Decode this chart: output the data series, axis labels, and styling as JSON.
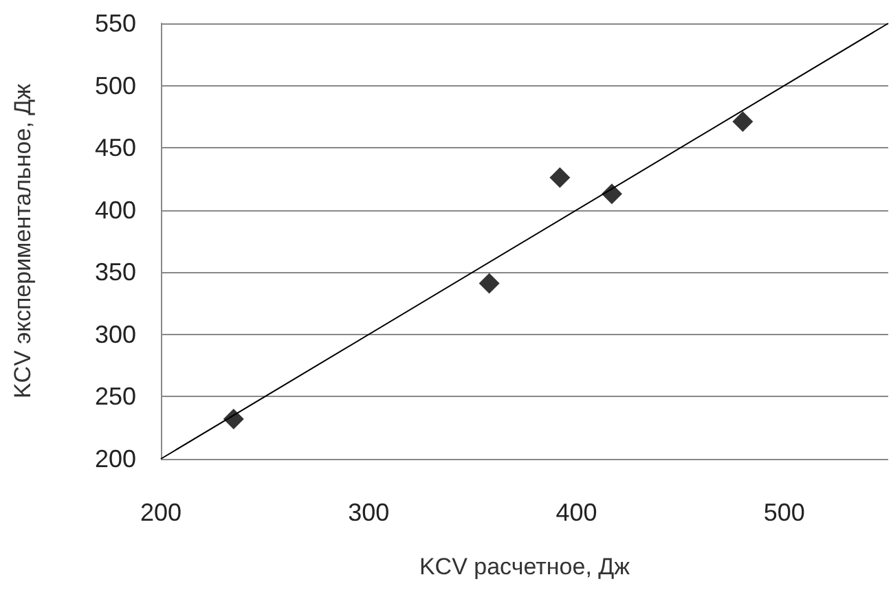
{
  "chart_data": {
    "type": "scatter",
    "xlabel": "KCV расчетное, Дж",
    "ylabel": "KCV экспериментальное, Дж",
    "x": [
      235,
      358,
      392,
      417,
      480
    ],
    "series": [
      {
        "color": "#000000",
        "marker": "diamond",
        "values": [
          232,
          341,
          426,
          413,
          471
        ]
      },
      {
        "type": "line",
        "color": "#000000",
        "marker": "none",
        "x": [
          200,
          550
        ],
        "values": [
          200,
          550
        ]
      }
    ],
    "xlim": [
      200,
      550
    ],
    "xticks": [
      200,
      300,
      400,
      500
    ],
    "ylim": [
      200,
      550
    ],
    "yticks": [
      200,
      250,
      300,
      350,
      400,
      450,
      500,
      550
    ],
    "grid": "y"
  }
}
